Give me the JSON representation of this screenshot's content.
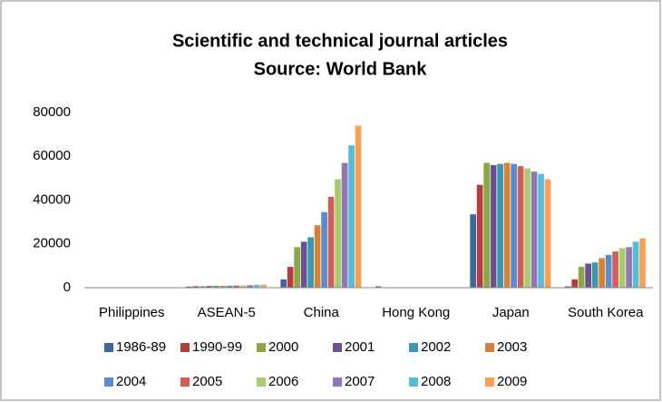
{
  "chart_data": {
    "type": "bar",
    "title": "Scientific and technical journal articles",
    "subtitle": "Source: World Bank",
    "categories": [
      "Philippines",
      "ASEAN-5",
      "China",
      "Hong Kong",
      "Japan",
      "South Korea"
    ],
    "series": [
      {
        "name": "1986-89",
        "color": "#41679e",
        "values": [
          150,
          500,
          3800,
          600,
          33500,
          600
        ]
      },
      {
        "name": "1990-99",
        "color": "#b53d3a",
        "values": [
          160,
          650,
          9500,
          150,
          47000,
          3800
        ]
      },
      {
        "name": "2000",
        "color": "#88a846",
        "values": [
          170,
          700,
          18500,
          150,
          57000,
          9500
        ]
      },
      {
        "name": "2001",
        "color": "#6c508f",
        "values": [
          170,
          750,
          21000,
          150,
          56000,
          11000
        ]
      },
      {
        "name": "2002",
        "color": "#3b97b0",
        "values": [
          180,
          800,
          23000,
          150,
          56500,
          11500
        ]
      },
      {
        "name": "2003",
        "color": "#d98132",
        "values": [
          180,
          850,
          28500,
          150,
          57000,
          13500
        ]
      },
      {
        "name": "2004",
        "color": "#5b8bcc",
        "values": [
          190,
          900,
          34500,
          150,
          56500,
          15000
        ]
      },
      {
        "name": "2005",
        "color": "#d05f5c",
        "values": [
          190,
          950,
          41500,
          150,
          55500,
          16500
        ]
      },
      {
        "name": "2006",
        "color": "#a9cb6b",
        "values": [
          200,
          1000,
          49500,
          150,
          54500,
          18000
        ]
      },
      {
        "name": "2007",
        "color": "#9077b5",
        "values": [
          200,
          1100,
          57000,
          150,
          53000,
          18500
        ]
      },
      {
        "name": "2008",
        "color": "#57bcd6",
        "values": [
          210,
          1300,
          65000,
          150,
          52000,
          21000
        ]
      },
      {
        "name": "2009",
        "color": "#f9a057",
        "values": [
          220,
          1400,
          74000,
          150,
          49500,
          22500
        ]
      }
    ],
    "ylim": [
      0,
      80000
    ],
    "yticks": [
      0,
      20000,
      40000,
      60000,
      80000
    ],
    "grid": false
  }
}
